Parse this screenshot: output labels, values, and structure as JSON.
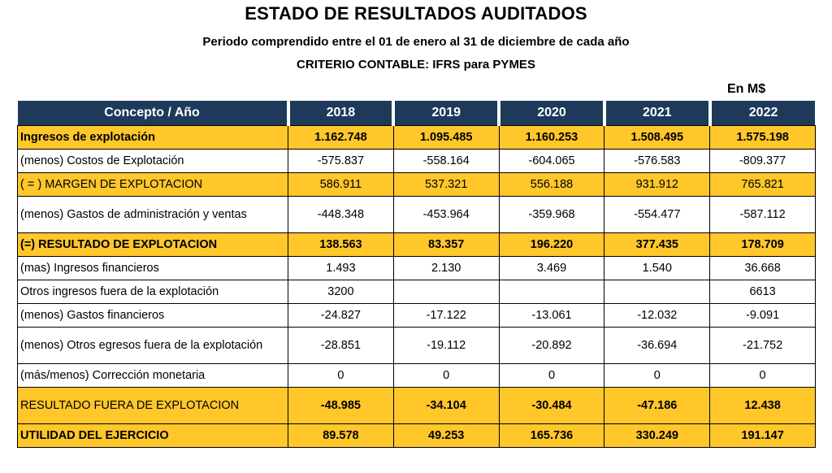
{
  "title": "ESTADO DE RESULTADOS  AUDITADOS",
  "subtitle": "Periodo comprendido entre el 01 de enero al 31 de diciembre de cada año",
  "criterio": "CRITERIO CONTABLE:  IFRS    para PYMES",
  "unit": "En M$",
  "header": {
    "concept": "Concepto  /  Año",
    "years": [
      "2018",
      "2019",
      "2020",
      "2021",
      "2022"
    ]
  },
  "rows": [
    {
      "label": "Ingresos de explotación",
      "values": [
        "1.162.748",
        "1.095.485",
        "1.160.253",
        "1.508.495",
        "1.575.198"
      ],
      "highlight": "#ffc72a",
      "bold": true,
      "tall": false
    },
    {
      "label": "(menos) Costos de Explotación",
      "values": [
        "-575.837",
        "-558.164",
        "-604.065",
        "-576.583",
        "-809.377"
      ],
      "highlight": "",
      "bold": false,
      "tall": false
    },
    {
      "label": "( = )   MARGEN DE EXPLOTACION",
      "values": [
        "586.911",
        "537.321",
        "556.188",
        "931.912",
        "765.821"
      ],
      "highlight": "#ffc72a",
      "bold": false,
      "tall": false
    },
    {
      "label": "(menos) Gastos de administración y ventas",
      "values": [
        "-448.348",
        "-453.964",
        "-359.968",
        "-554.477",
        "-587.112"
      ],
      "highlight": "",
      "bold": false,
      "tall": true
    },
    {
      "label": "(=)    RESULTADO DE EXPLOTACION",
      "values": [
        "138.563",
        "83.357",
        "196.220",
        "377.435",
        "178.709"
      ],
      "highlight": "#ffc72a",
      "bold": true,
      "tall": false
    },
    {
      "label": "(mas) Ingresos financieros",
      "values": [
        "1.493",
        "2.130",
        "3.469",
        "1.540",
        "36.668"
      ],
      "highlight": "",
      "bold": false,
      "tall": false
    },
    {
      "label": "Otros ingresos fuera de la explotación",
      "values": [
        "3200",
        "",
        "",
        "",
        "6613"
      ],
      "highlight": "",
      "bold": false,
      "tall": false
    },
    {
      "label": "(menos) Gastos financieros",
      "values": [
        "-24.827",
        "-17.122",
        "-13.061",
        "-12.032",
        "-9.091"
      ],
      "highlight": "",
      "bold": false,
      "tall": false
    },
    {
      "label": "(menos) Otros egresos fuera de la explotación",
      "values": [
        "-28.851",
        "-19.112",
        "-20.892",
        "-36.694",
        "-21.752"
      ],
      "highlight": "",
      "bold": false,
      "tall": true
    },
    {
      "label": "(más/menos)    Corrección monetaria",
      "values": [
        "0",
        "0",
        "0",
        "0",
        "0"
      ],
      "highlight": "",
      "bold": false,
      "tall": false
    },
    {
      "label": "RESULTADO FUERA DE EXPLOTACION",
      "values": [
        "-48.985",
        "-34.104",
        "-30.484",
        "-47.186",
        "12.438"
      ],
      "highlight": "#ffc72a",
      "bold": "values",
      "tall": true
    },
    {
      "label": "UTILIDAD DEL EJERCICIO",
      "values": [
        "89.578",
        "49.253",
        "165.736",
        "330.249",
        "191.147"
      ],
      "highlight": "#ffc72a",
      "bold": true,
      "tall": false
    }
  ]
}
